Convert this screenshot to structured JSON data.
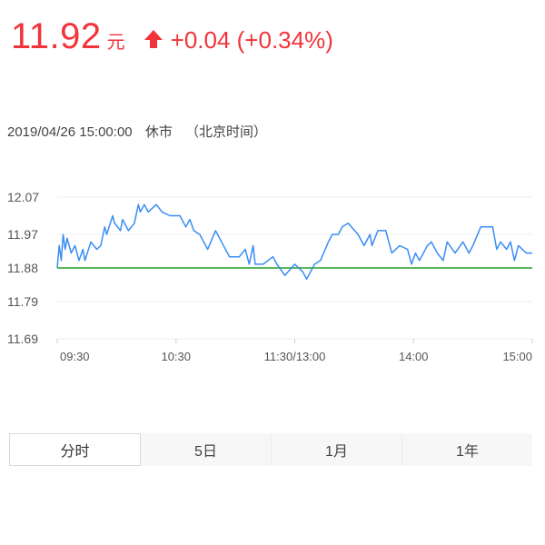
{
  "quote": {
    "price": "11.92",
    "unit": "元",
    "direction_icon": "arrow-up-icon",
    "change": "+0.04 (+0.34%)",
    "color": "#f2333a"
  },
  "status": {
    "datetime": "2019/04/26 15:00:00",
    "state": "休市",
    "timezone": "（北京时间）"
  },
  "tabs": [
    {
      "label": "分时",
      "active": true
    },
    {
      "label": "5日",
      "active": false
    },
    {
      "label": "1月",
      "active": false
    },
    {
      "label": "1年",
      "active": false
    }
  ],
  "chart_data": {
    "type": "line",
    "ylim": [
      11.69,
      12.07
    ],
    "y_ticks": [
      "12.07",
      "11.97",
      "11.88",
      "11.79",
      "11.69"
    ],
    "x_ticks": [
      "09:30",
      "10:30",
      "11:30/13:00",
      "14:00",
      "15:00"
    ],
    "grid": true,
    "reference_line": {
      "value": 11.88,
      "color": "#5cb85c"
    },
    "line_color": "#3a8df5",
    "series": [
      {
        "points": [
          [
            "09:30",
            11.88
          ],
          [
            "09:31",
            11.94
          ],
          [
            "09:32",
            11.9
          ],
          [
            "09:33",
            11.97
          ],
          [
            "09:34",
            11.93
          ],
          [
            "09:35",
            11.96
          ],
          [
            "09:37",
            11.92
          ],
          [
            "09:39",
            11.94
          ],
          [
            "09:41",
            11.9
          ],
          [
            "09:43",
            11.93
          ],
          [
            "09:44",
            11.9
          ],
          [
            "09:47",
            11.95
          ],
          [
            "09:50",
            11.93
          ],
          [
            "09:52",
            11.94
          ],
          [
            "09:54",
            11.99
          ],
          [
            "09:55",
            11.97
          ],
          [
            "09:58",
            12.02
          ],
          [
            "09:59",
            12.0
          ],
          [
            "10:02",
            11.98
          ],
          [
            "10:03",
            12.01
          ],
          [
            "10:06",
            11.98
          ],
          [
            "10:09",
            12.0
          ],
          [
            "10:11",
            12.05
          ],
          [
            "10:12",
            12.03
          ],
          [
            "10:14",
            12.05
          ],
          [
            "10:16",
            12.03
          ],
          [
            "10:20",
            12.05
          ],
          [
            "10:23",
            12.03
          ],
          [
            "10:27",
            12.02
          ],
          [
            "10:32",
            12.02
          ],
          [
            "10:35",
            11.99
          ],
          [
            "10:37",
            12.01
          ],
          [
            "10:39",
            11.98
          ],
          [
            "10:42",
            11.97
          ],
          [
            "10:46",
            11.93
          ],
          [
            "10:50",
            11.98
          ],
          [
            "10:53",
            11.95
          ],
          [
            "10:57",
            11.91
          ],
          [
            "11:02",
            11.91
          ],
          [
            "11:05",
            11.93
          ],
          [
            "11:07",
            11.89
          ],
          [
            "11:09",
            11.94
          ],
          [
            "11:10",
            11.89
          ],
          [
            "11:14",
            11.89
          ],
          [
            "11:19",
            11.91
          ],
          [
            "11:21",
            11.89
          ],
          [
            "11:25",
            11.86
          ],
          [
            "11:30",
            11.89
          ],
          [
            "13:04",
            11.87
          ],
          [
            "13:06",
            11.85
          ],
          [
            "13:10",
            11.89
          ],
          [
            "13:13",
            11.9
          ],
          [
            "13:17",
            11.95
          ],
          [
            "13:19",
            11.97
          ],
          [
            "13:22",
            11.97
          ],
          [
            "13:24",
            11.99
          ],
          [
            "13:27",
            12.0
          ],
          [
            "13:32",
            11.97
          ],
          [
            "13:35",
            11.94
          ],
          [
            "13:38",
            11.97
          ],
          [
            "13:39",
            11.94
          ],
          [
            "13:42",
            11.98
          ],
          [
            "13:46",
            11.98
          ],
          [
            "13:49",
            11.92
          ],
          [
            "13:53",
            11.94
          ],
          [
            "13:57",
            11.93
          ],
          [
            "13:59",
            11.89
          ],
          [
            "14:01",
            11.92
          ],
          [
            "14:03",
            11.9
          ],
          [
            "14:07",
            11.94
          ],
          [
            "14:09",
            11.95
          ],
          [
            "14:12",
            11.92
          ],
          [
            "14:15",
            11.9
          ],
          [
            "14:17",
            11.95
          ],
          [
            "14:21",
            11.92
          ],
          [
            "14:25",
            11.95
          ],
          [
            "14:28",
            11.92
          ],
          [
            "14:30",
            11.94
          ],
          [
            "14:34",
            11.99
          ],
          [
            "14:36",
            11.99
          ],
          [
            "14:40",
            11.99
          ],
          [
            "14:42",
            11.93
          ],
          [
            "14:44",
            11.95
          ],
          [
            "14:47",
            11.93
          ],
          [
            "14:49",
            11.95
          ],
          [
            "14:51",
            11.9
          ],
          [
            "14:53",
            11.94
          ],
          [
            "14:57",
            11.92
          ],
          [
            "15:00",
            11.92
          ]
        ]
      }
    ]
  }
}
